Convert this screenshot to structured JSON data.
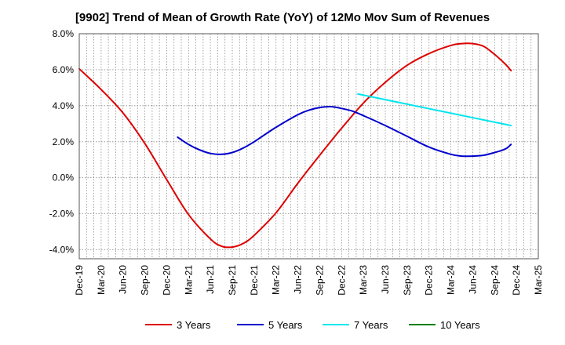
{
  "chart_data": {
    "type": "line",
    "title": "[9902]  Trend of Mean of Growth Rate (YoY) of 12Mo Mov Sum of Revenues",
    "xlabel": "",
    "ylabel": "",
    "ylim": [
      -4.5,
      8.0
    ],
    "yticks": [
      -4.0,
      -2.0,
      0.0,
      2.0,
      4.0,
      6.0,
      8.0
    ],
    "ytick_labels": [
      "-4.0%",
      "-2.0%",
      "0.0%",
      "2.0%",
      "4.0%",
      "6.0%",
      "8.0%"
    ],
    "xtick_labels": [
      "Dec-19",
      "Mar-20",
      "Jun-20",
      "Sep-20",
      "Dec-20",
      "Mar-21",
      "Jun-21",
      "Sep-21",
      "Dec-21",
      "Mar-22",
      "Jun-22",
      "Sep-22",
      "Dec-22",
      "Mar-23",
      "Jun-23",
      "Sep-23",
      "Dec-23",
      "Mar-24",
      "Jun-24",
      "Sep-24",
      "Dec-24",
      "Mar-25"
    ],
    "grid": true,
    "legend_position": "bottom",
    "series": [
      {
        "name": "3 Years",
        "color": "#dd0000",
        "points": [
          [
            0,
            6.05
          ],
          [
            2,
            4.9
          ],
          [
            4,
            3.6
          ],
          [
            6,
            1.9
          ],
          [
            8,
            -0.1
          ],
          [
            10,
            -2.05
          ],
          [
            12,
            -3.4
          ],
          [
            13,
            -3.8
          ],
          [
            14,
            -3.85
          ],
          [
            15,
            -3.65
          ],
          [
            16,
            -3.2
          ],
          [
            18,
            -1.95
          ],
          [
            20,
            -0.3
          ],
          [
            22,
            1.25
          ],
          [
            24,
            2.75
          ],
          [
            26,
            4.15
          ],
          [
            28,
            5.3
          ],
          [
            30,
            6.25
          ],
          [
            32,
            6.9
          ],
          [
            34,
            7.35
          ],
          [
            35,
            7.45
          ],
          [
            36,
            7.45
          ],
          [
            37,
            7.3
          ],
          [
            38,
            6.85
          ],
          [
            39,
            6.3
          ],
          [
            39.5,
            5.95
          ]
        ]
      },
      {
        "name": "5 Years",
        "color": "#0000cc",
        "points": [
          [
            9,
            2.25
          ],
          [
            10,
            1.85
          ],
          [
            11,
            1.55
          ],
          [
            12,
            1.35
          ],
          [
            13,
            1.3
          ],
          [
            14,
            1.4
          ],
          [
            15,
            1.65
          ],
          [
            16,
            2.0
          ],
          [
            18,
            2.8
          ],
          [
            20,
            3.5
          ],
          [
            21,
            3.75
          ],
          [
            22,
            3.9
          ],
          [
            23,
            3.95
          ],
          [
            24,
            3.85
          ],
          [
            25,
            3.7
          ],
          [
            26,
            3.45
          ],
          [
            28,
            2.9
          ],
          [
            30,
            2.3
          ],
          [
            32,
            1.7
          ],
          [
            34,
            1.3
          ],
          [
            35,
            1.2
          ],
          [
            36,
            1.2
          ],
          [
            37,
            1.25
          ],
          [
            38,
            1.4
          ],
          [
            39,
            1.6
          ],
          [
            39.5,
            1.85
          ]
        ]
      },
      {
        "name": "7 Years",
        "color": "#00e5ee",
        "points": [
          [
            25.5,
            4.65
          ],
          [
            39.5,
            2.9
          ]
        ]
      },
      {
        "name": "10 Years",
        "color": "#008000",
        "points": []
      }
    ]
  }
}
